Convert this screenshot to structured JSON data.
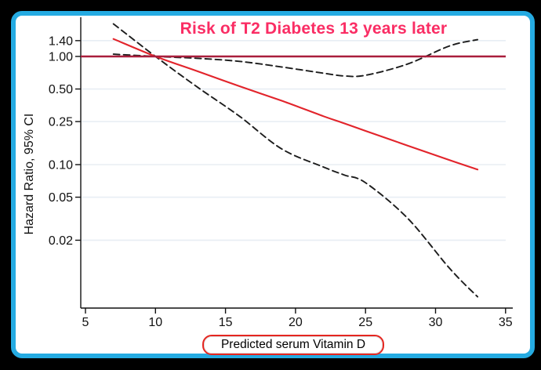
{
  "figure": {
    "outer_background": "#000000",
    "frame_border_color": "#25ABE2",
    "plot_background": "#FFFFFF"
  },
  "chart_data": {
    "type": "line",
    "title": "Risk of T2 Diabetes 13 years later",
    "title_color": "#FA2D64",
    "xlabel": "Predicted serum Vitamin D",
    "xlabel_box_border_color": "#E52620",
    "ylabel": "Hazard Ratio, 95% CI",
    "y_scale": "log",
    "x_ticks": [
      5,
      10,
      15,
      20,
      25,
      30,
      35
    ],
    "y_ticks": [
      1.4,
      1.0,
      0.5,
      0.25,
      0.1,
      0.05,
      0.02
    ],
    "y_tick_labels": [
      "1.40",
      "1.00",
      "0.50",
      "0.25",
      "0.10",
      "0.05",
      "0.02"
    ],
    "xlim": [
      4.5,
      35.6
    ],
    "ylim": [
      0.004,
      2.3
    ],
    "grid": "horizontal-only",
    "grid_color": "#E8EEF4",
    "reference_line": {
      "y": 1.0,
      "color": "#A91E3C",
      "style": "solid"
    },
    "x": [
      7,
      10,
      13,
      16,
      19,
      22,
      23.5,
      25,
      28,
      31,
      33
    ],
    "series": [
      {
        "name": "hazard-ratio-estimate",
        "style": "solid",
        "color": "#E2242B",
        "values": [
          1.45,
          1.0,
          0.73,
          0.53,
          0.39,
          0.28,
          0.24,
          0.205,
          0.15,
          0.11,
          0.09
        ]
      },
      {
        "name": "ci-bound-shallow",
        "style": "dashed",
        "color": "#1C1C1C",
        "values": [
          1.05,
          1.0,
          0.96,
          0.9,
          0.8,
          0.7,
          0.66,
          0.67,
          0.85,
          1.25,
          1.43
        ]
      },
      {
        "name": "ci-bound-steep",
        "style": "dashed",
        "color": "#1C1C1C",
        "values": [
          2.0,
          1.0,
          0.52,
          0.28,
          0.14,
          0.095,
          0.08,
          0.068,
          0.032,
          0.011,
          0.006
        ]
      }
    ],
    "legend": "none",
    "reference_point": {
      "x": 10,
      "y": 1.0
    }
  }
}
